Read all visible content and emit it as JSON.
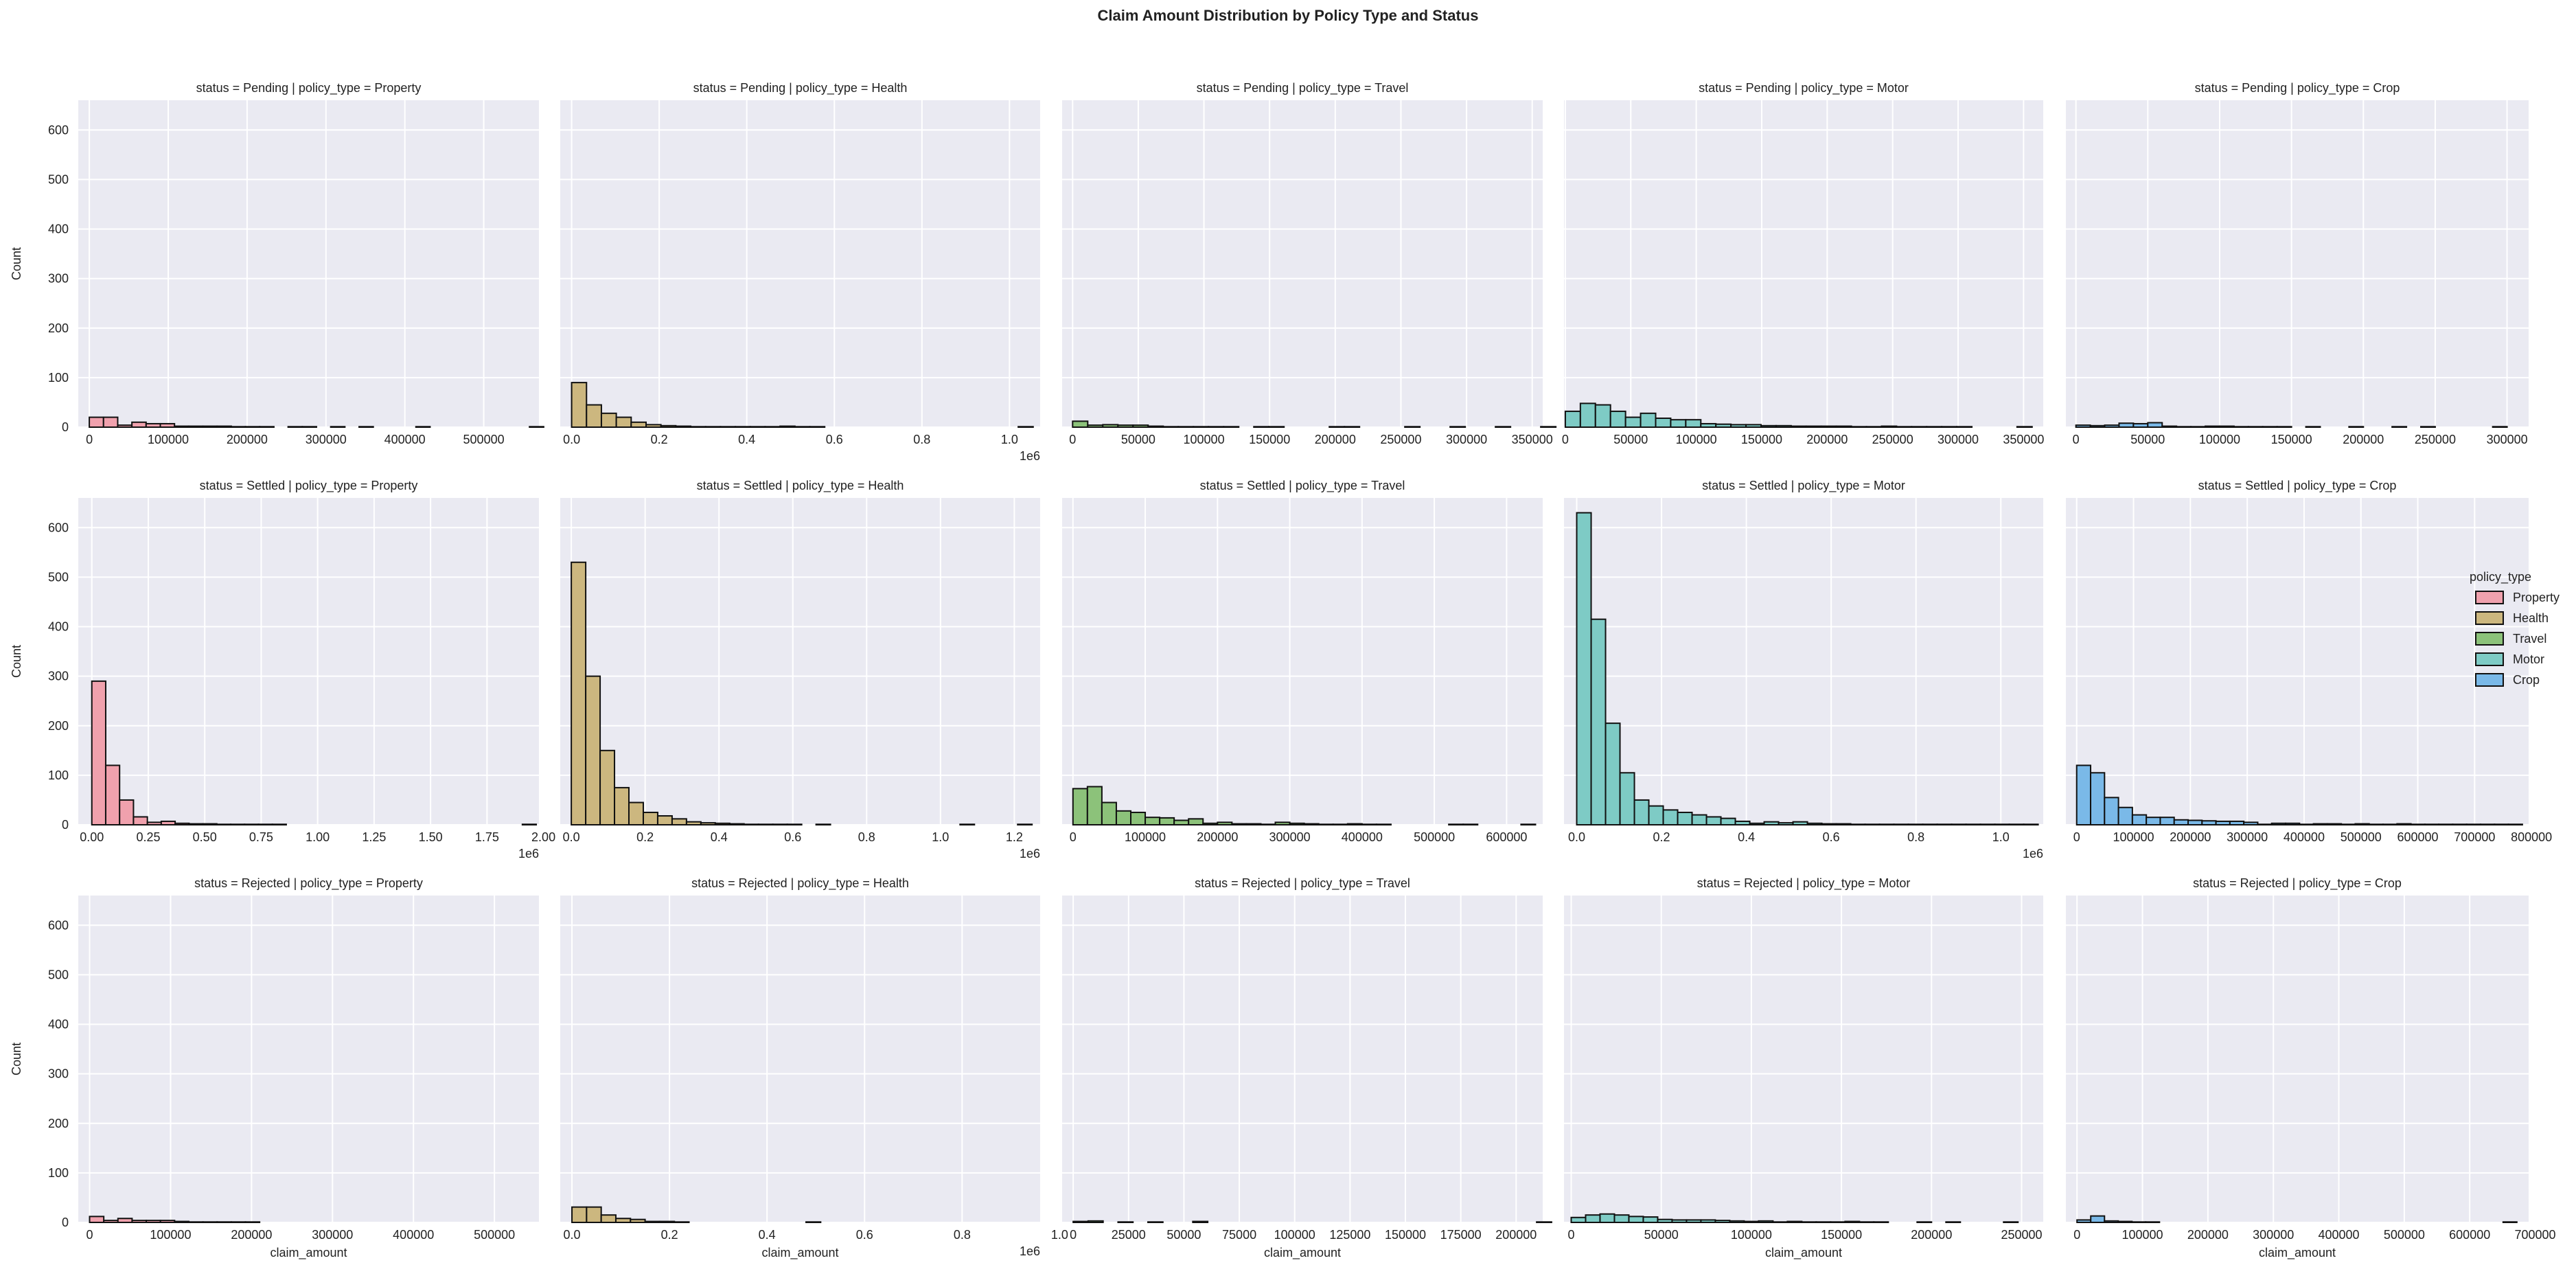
{
  "chart_data": {
    "type": "bar",
    "title": "Claim Amount Distribution by Policy Type and Status",
    "rows": [
      "Pending",
      "Settled",
      "Rejected"
    ],
    "columns": [
      "Property",
      "Health",
      "Travel",
      "Motor",
      "Crop"
    ],
    "xlabel": "claim_amount",
    "ylabel": "Count",
    "ylim": [
      0,
      660
    ],
    "yticks": [
      0,
      100,
      200,
      300,
      400,
      500,
      600
    ],
    "grid": true,
    "legend": {
      "title": "policy_type",
      "position": "center-right",
      "items": [
        {
          "label": "Property",
          "color": "#f0a1ad"
        },
        {
          "label": "Health",
          "color": "#ccb77f"
        },
        {
          "label": "Travel",
          "color": "#8cc27a"
        },
        {
          "label": "Motor",
          "color": "#7ecbc5"
        },
        {
          "label": "Crop",
          "color": "#7ab9e8"
        }
      ]
    },
    "bar_style": {
      "edge_color": "#111111"
    },
    "panels": [
      {
        "title": "status = Pending | policy_type = Property",
        "status": "Pending",
        "policy_type": "Property",
        "xlim": [
          -14000,
          570000
        ],
        "xticks": [
          0,
          100000,
          200000,
          300000,
          400000,
          500000
        ],
        "xticklabels": [
          "0",
          "100000",
          "200000",
          "300000",
          "400000",
          "500000"
        ],
        "offset_text": "",
        "bin_start": 0,
        "bin_width": 18000,
        "counts": [
          20,
          20,
          4,
          10,
          7,
          7,
          2,
          2,
          2,
          2,
          1,
          1,
          1,
          0,
          1,
          1,
          0,
          1,
          0,
          1,
          0,
          0,
          0,
          1,
          0,
          0,
          0,
          0,
          0,
          0,
          0,
          1
        ]
      },
      {
        "title": "status = Pending | policy_type = Health",
        "status": "Pending",
        "policy_type": "Health",
        "xlim": [
          -0.026,
          1.07
        ],
        "xticks": [
          0,
          0.2,
          0.4,
          0.6,
          0.8,
          1.0
        ],
        "xticklabels": [
          "0.0",
          "0.2",
          "0.4",
          "0.6",
          "0.8",
          "1.0"
        ],
        "offset_text": "1e6",
        "bin_start": 0,
        "bin_width": 0.034,
        "counts": [
          90,
          45,
          28,
          20,
          10,
          5,
          3,
          2,
          1,
          1,
          1,
          1,
          1,
          1,
          2,
          1,
          1,
          0,
          0,
          0,
          0,
          0,
          0,
          0,
          0,
          0,
          0,
          0,
          0,
          0,
          1
        ]
      },
      {
        "title": "status = Pending | policy_type = Travel",
        "status": "Pending",
        "policy_type": "Travel",
        "xlim": [
          -8000,
          358000
        ],
        "xticks": [
          0,
          50000,
          100000,
          150000,
          200000,
          250000,
          300000,
          350000
        ],
        "xticklabels": [
          "0",
          "50000",
          "100000",
          "150000",
          "200000",
          "250000",
          "300000",
          "350000"
        ],
        "offset_text": "",
        "bin_start": 0,
        "bin_width": 11500,
        "counts": [
          12,
          4,
          5,
          4,
          4,
          2,
          1,
          1,
          1,
          1,
          1,
          0,
          1,
          1,
          0,
          0,
          0,
          1,
          1,
          0,
          0,
          0,
          1,
          0,
          0,
          1,
          0,
          0,
          1,
          0,
          0,
          1
        ]
      },
      {
        "title": "status = Pending | policy_type = Motor",
        "status": "Pending",
        "policy_type": "Motor",
        "xlim": [
          -1000,
          365000
        ],
        "xticks": [
          0,
          50000,
          100000,
          150000,
          200000,
          250000,
          300000,
          350000
        ],
        "xticklabels": [
          "0",
          "50000",
          "100000",
          "150000",
          "200000",
          "250000",
          "300000",
          "350000"
        ],
        "offset_text": "",
        "bin_start": 0,
        "bin_width": 11500,
        "counts": [
          32,
          48,
          45,
          32,
          20,
          28,
          18,
          15,
          15,
          7,
          6,
          5,
          5,
          3,
          3,
          2,
          2,
          2,
          2,
          1,
          1,
          2,
          1,
          1,
          1,
          1,
          1,
          0,
          0,
          0,
          1
        ]
      },
      {
        "title": "status = Pending | policy_type = Crop",
        "status": "Pending",
        "policy_type": "Crop",
        "xlim": [
          -7000,
          315000
        ],
        "xticks": [
          0,
          50000,
          100000,
          150000,
          200000,
          250000,
          300000
        ],
        "xticklabels": [
          "0",
          "50000",
          "100000",
          "150000",
          "200000",
          "250000",
          "300000"
        ],
        "offset_text": "",
        "bin_start": 0,
        "bin_width": 10000,
        "counts": [
          4,
          3,
          4,
          8,
          7,
          9,
          2,
          1,
          1,
          2,
          2,
          1,
          1,
          1,
          1,
          0,
          1,
          0,
          0,
          1,
          0,
          0,
          1,
          0,
          1,
          0,
          0,
          0,
          0,
          1
        ]
      },
      {
        "title": "status = Settled | policy_type = Property",
        "status": "Settled",
        "policy_type": "Property",
        "xlim": [
          -0.06,
          1.98
        ],
        "xticks": [
          0,
          0.25,
          0.5,
          0.75,
          1.0,
          1.25,
          1.5,
          1.75,
          2.0
        ],
        "xticklabels": [
          "0.00",
          "0.25",
          "0.50",
          "0.75",
          "1.00",
          "1.25",
          "1.50",
          "1.75",
          "2.00"
        ],
        "offset_text": "1e6",
        "bin_start": 0,
        "bin_width": 0.0615,
        "counts": [
          290,
          120,
          50,
          16,
          5,
          7,
          3,
          2,
          2,
          1,
          1,
          1,
          1,
          1,
          0,
          0,
          0,
          0,
          0,
          0,
          0,
          0,
          0,
          0,
          0,
          0,
          0,
          0,
          0,
          0,
          0,
          1
        ]
      },
      {
        "title": "status = Settled | policy_type = Health",
        "status": "Settled",
        "policy_type": "Health",
        "xlim": [
          -0.03,
          1.27
        ],
        "xticks": [
          0,
          0.2,
          0.4,
          0.6,
          0.8,
          1.0,
          1.2
        ],
        "xticklabels": [
          "0.0",
          "0.2",
          "0.4",
          "0.6",
          "0.8",
          "1.0",
          "1.2"
        ],
        "offset_text": "1e6",
        "bin_start": 0,
        "bin_width": 0.039,
        "counts": [
          530,
          300,
          150,
          75,
          45,
          25,
          18,
          12,
          6,
          4,
          3,
          2,
          1,
          1,
          1,
          1,
          0,
          1,
          0,
          0,
          0,
          0,
          0,
          0,
          0,
          0,
          0,
          1,
          0,
          0,
          0,
          1
        ]
      },
      {
        "title": "status = Settled | policy_type = Travel",
        "status": "Settled",
        "policy_type": "Travel",
        "xlim": [
          -15000,
          650000
        ],
        "xticks": [
          0,
          100000,
          200000,
          300000,
          400000,
          500000,
          600000
        ],
        "xticklabels": [
          "0",
          "100000",
          "200000",
          "300000",
          "400000",
          "500000",
          "600000"
        ],
        "offset_text": "",
        "bin_start": 0,
        "bin_width": 20000,
        "counts": [
          73,
          77,
          45,
          28,
          25,
          15,
          14,
          9,
          12,
          3,
          5,
          2,
          2,
          1,
          5,
          3,
          2,
          1,
          1,
          2,
          1,
          1,
          0,
          0,
          0,
          0,
          1,
          1,
          0,
          0,
          0,
          1
        ]
      },
      {
        "title": "status = Settled | policy_type = Motor",
        "status": "Settled",
        "policy_type": "Motor",
        "xlim": [
          -0.03,
          1.1
        ],
        "xticks": [
          0,
          0.2,
          0.4,
          0.6,
          0.8,
          1.0
        ],
        "xticklabels": [
          "0.0",
          "0.2",
          "0.4",
          "0.6",
          "0.8",
          "1.0"
        ],
        "offset_text": "1e6",
        "bin_start": 0,
        "bin_width": 0.034,
        "counts": [
          630,
          415,
          205,
          105,
          50,
          38,
          30,
          25,
          20,
          16,
          13,
          7,
          3,
          6,
          4,
          6,
          3,
          2,
          2,
          1,
          1,
          1,
          1,
          1,
          1,
          1,
          1,
          1,
          1,
          1,
          1,
          1
        ]
      },
      {
        "title": "status = Settled | policy_type = Crop",
        "status": "Settled",
        "policy_type": "Crop",
        "xlim": [
          -19000,
          795000
        ],
        "xticks": [
          0,
          100000,
          200000,
          300000,
          400000,
          500000,
          600000,
          700000,
          800000
        ],
        "xticklabels": [
          "0",
          "100000",
          "200000",
          "300000",
          "400000",
          "500000",
          "600000",
          "700000",
          "800000"
        ],
        "offset_text": "",
        "bin_start": 0,
        "bin_width": 24500,
        "counts": [
          120,
          105,
          55,
          35,
          20,
          15,
          15,
          10,
          9,
          8,
          7,
          7,
          5,
          1,
          3,
          3,
          1,
          2,
          2,
          1,
          2,
          1,
          1,
          2,
          1,
          1,
          1,
          1,
          1,
          1,
          1,
          1
        ]
      },
      {
        "title": "status = Rejected | policy_type = Property",
        "status": "Rejected",
        "policy_type": "Property",
        "xlim": [
          -14000,
          555000
        ],
        "xticks": [
          0,
          100000,
          200000,
          300000,
          400000,
          500000
        ],
        "xticklabels": [
          "0",
          "100000",
          "200000",
          "300000",
          "400000",
          "500000"
        ],
        "offset_text": "",
        "bin_start": 0,
        "bin_width": 17500,
        "counts": [
          12,
          4,
          8,
          4,
          4,
          4,
          2,
          1,
          1,
          1,
          1,
          1,
          0,
          0,
          0,
          0,
          0,
          0,
          0,
          0,
          0,
          0,
          0,
          0,
          0,
          0,
          0,
          0,
          0,
          0,
          0,
          0
        ]
      },
      {
        "title": "status = Rejected | policy_type = Health",
        "status": "Rejected",
        "policy_type": "Health",
        "xlim": [
          -0.024,
          0.96
        ],
        "xticks": [
          0,
          0.2,
          0.4,
          0.6,
          0.8,
          1.0
        ],
        "xticklabels": [
          "0.0",
          "0.2",
          "0.4",
          "0.6",
          "0.8",
          "1.0"
        ],
        "offset_text": "1e6",
        "bin_start": 0,
        "bin_width": 0.03,
        "counts": [
          31,
          31,
          15,
          8,
          6,
          2,
          2,
          1,
          0,
          0,
          0,
          0,
          0,
          0,
          0,
          0,
          1,
          0,
          0,
          0,
          0,
          0,
          0,
          0,
          0,
          0,
          0,
          0,
          0,
          0,
          0,
          0
        ]
      },
      {
        "title": "status = Rejected | policy_type = Travel",
        "status": "Rejected",
        "policy_type": "Travel",
        "xlim": [
          -5000,
          212000
        ],
        "xticks": [
          0,
          25000,
          50000,
          75000,
          100000,
          125000,
          150000,
          175000,
          200000
        ],
        "xticklabels": [
          "0",
          "25000",
          "50000",
          "75000",
          "100000",
          "125000",
          "150000",
          "175000",
          "200000"
        ],
        "offset_text": "",
        "bin_start": 0,
        "bin_width": 6750,
        "counts": [
          2,
          3,
          0,
          1,
          0,
          1,
          0,
          0,
          2,
          0,
          0,
          0,
          0,
          0,
          0,
          0,
          0,
          0,
          0,
          0,
          0,
          0,
          0,
          0,
          0,
          0,
          0,
          0,
          0,
          0,
          0,
          1
        ]
      },
      {
        "title": "status = Rejected | policy_type = Motor",
        "status": "Rejected",
        "policy_type": "Motor",
        "xlim": [
          -4000,
          262000
        ],
        "xticks": [
          0,
          50000,
          100000,
          150000,
          200000,
          250000
        ],
        "xticklabels": [
          "0",
          "50000",
          "100000",
          "150000",
          "200000",
          "250000"
        ],
        "offset_text": "",
        "bin_start": 0,
        "bin_width": 8000,
        "counts": [
          10,
          15,
          17,
          15,
          12,
          11,
          6,
          5,
          5,
          5,
          4,
          3,
          2,
          3,
          1,
          2,
          1,
          1,
          1,
          2,
          1,
          1,
          0,
          0,
          1,
          0,
          1,
          0,
          0,
          0,
          1,
          0
        ]
      },
      {
        "title": "status = Rejected | policy_type = Crop",
        "status": "Rejected",
        "policy_type": "Crop",
        "xlim": [
          -17000,
          690000
        ],
        "xticks": [
          0,
          100000,
          200000,
          300000,
          400000,
          500000,
          600000,
          700000
        ],
        "xticklabels": [
          "0",
          "100000",
          "200000",
          "300000",
          "400000",
          "500000",
          "600000",
          "700000"
        ],
        "offset_text": "",
        "bin_start": 0,
        "bin_width": 21000,
        "counts": [
          5,
          13,
          3,
          2,
          1,
          1,
          0,
          0,
          0,
          0,
          0,
          0,
          0,
          0,
          0,
          0,
          0,
          0,
          0,
          0,
          0,
          0,
          0,
          0,
          0,
          0,
          0,
          0,
          0,
          0,
          0,
          1
        ]
      }
    ]
  }
}
